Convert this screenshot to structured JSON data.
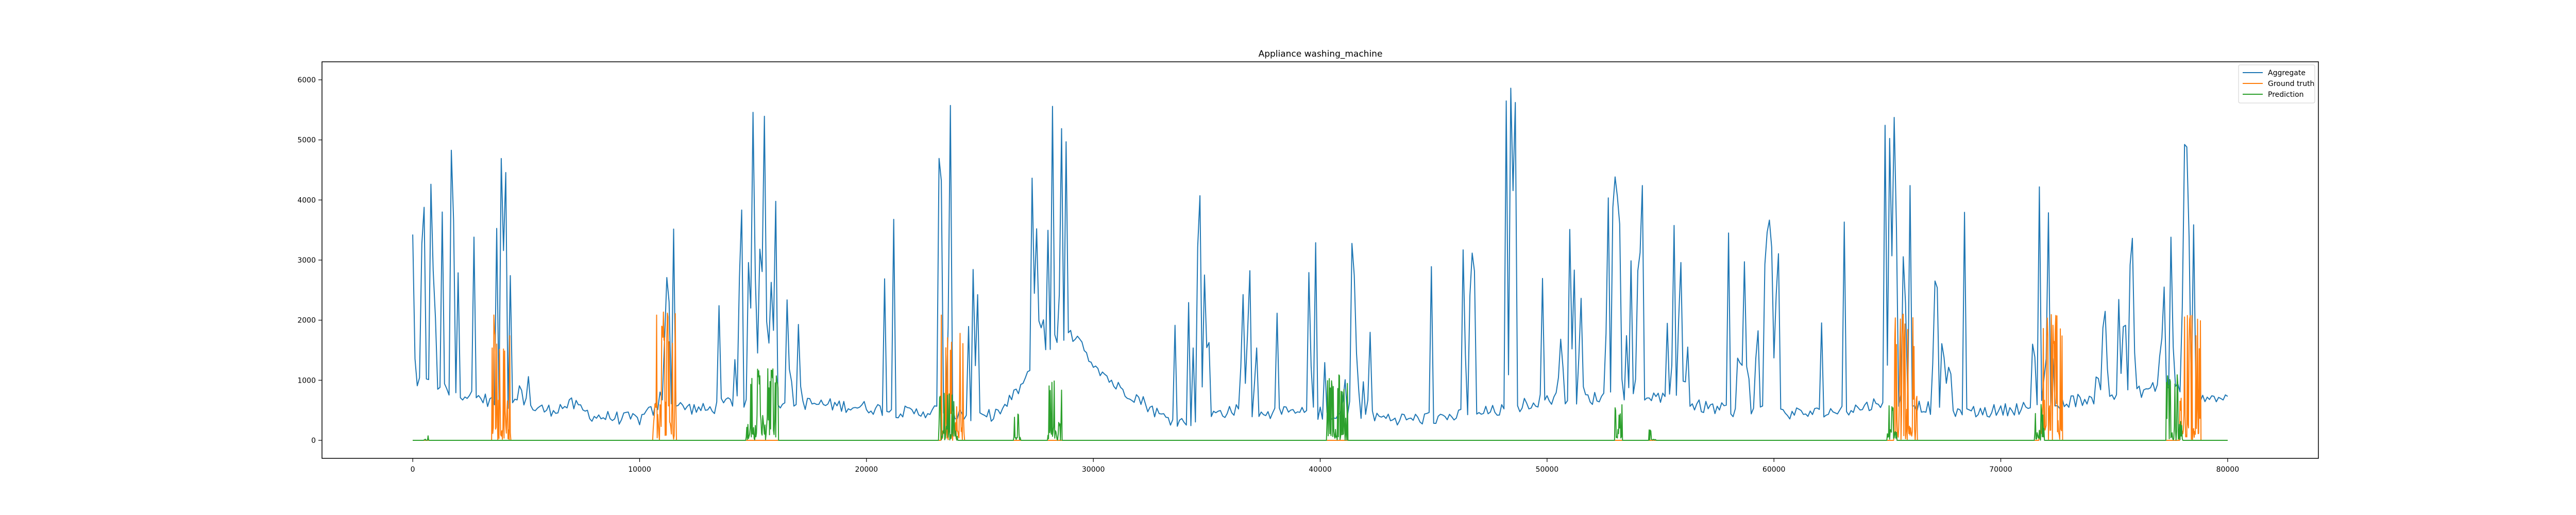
{
  "chart_data": {
    "type": "line",
    "title": "Appliance washing_machine",
    "xlabel": "",
    "ylabel": "",
    "xlim": [
      -4000,
      84000
    ],
    "ylim": [
      -300,
      6300
    ],
    "xticks": [
      0,
      10000,
      20000,
      30000,
      40000,
      50000,
      60000,
      70000,
      80000
    ],
    "yticks": [
      0,
      1000,
      2000,
      3000,
      4000,
      5000,
      6000
    ],
    "grid": false,
    "legend_position": "upper right",
    "series": [
      {
        "name": "Aggregate",
        "color": "#1f77b4",
        "sample_step": 100,
        "baseline": [
          [
            0,
            1000
          ],
          [
            2000,
            800
          ],
          [
            3000,
            700
          ],
          [
            4000,
            600
          ],
          [
            6000,
            500
          ],
          [
            7000,
            600
          ],
          [
            8000,
            400
          ],
          [
            10000,
            350
          ],
          [
            11000,
            600
          ],
          [
            13000,
            500
          ],
          [
            14000,
            650
          ],
          [
            16000,
            650
          ],
          [
            18000,
            600
          ],
          [
            20000,
            550
          ],
          [
            22000,
            450
          ],
          [
            23000,
            500
          ],
          [
            25000,
            350
          ],
          [
            26000,
            500
          ],
          [
            27000,
            1000
          ],
          [
            28000,
            1500
          ],
          [
            29000,
            1800
          ],
          [
            30000,
            1300
          ],
          [
            31000,
            900
          ],
          [
            32000,
            700
          ],
          [
            33000,
            400
          ],
          [
            34000,
            300
          ],
          [
            35000,
            400
          ],
          [
            36000,
            500
          ],
          [
            38000,
            450
          ],
          [
            40000,
            450
          ],
          [
            42000,
            400
          ],
          [
            44000,
            350
          ],
          [
            46000,
            400
          ],
          [
            48000,
            500
          ],
          [
            50000,
            700
          ],
          [
            52000,
            700
          ],
          [
            54000,
            800
          ],
          [
            56000,
            600
          ],
          [
            58000,
            500
          ],
          [
            60000,
            450
          ],
          [
            62000,
            450
          ],
          [
            64000,
            550
          ],
          [
            65000,
            700
          ],
          [
            66000,
            600
          ],
          [
            68000,
            450
          ],
          [
            70000,
            500
          ],
          [
            72000,
            600
          ],
          [
            74000,
            700
          ],
          [
            76000,
            800
          ],
          [
            77000,
            900
          ],
          [
            78000,
            800
          ],
          [
            80000,
            700
          ]
        ],
        "bursts": [
          [
            0,
            1000,
            4500
          ],
          [
            1200,
            600,
            6000
          ],
          [
            3600,
            800,
            4900
          ],
          [
            4600,
            500,
            1900
          ],
          [
            10700,
            800,
            4100
          ],
          [
            14200,
            1800,
            6000
          ],
          [
            16500,
            600,
            2500
          ],
          [
            23200,
            600,
            6000
          ],
          [
            24500,
            400,
            3600
          ],
          [
            27300,
            1800,
            6000
          ],
          [
            29100,
            500,
            4300
          ],
          [
            34200,
            900,
            4200
          ],
          [
            36500,
            700,
            3300
          ],
          [
            39500,
            700,
            4300
          ],
          [
            41000,
            1200,
            3700
          ],
          [
            46200,
            700,
            3800
          ],
          [
            48200,
            500,
            6000
          ],
          [
            50500,
            1100,
            3800
          ],
          [
            52500,
            1800,
            4700
          ],
          [
            55300,
            900,
            3700
          ],
          [
            58300,
            1000,
            3700
          ],
          [
            59600,
            600,
            3800
          ],
          [
            64900,
            1100,
            6000
          ],
          [
            67000,
            800,
            3000
          ],
          [
            71400,
            1100,
            4300
          ],
          [
            74000,
            700,
            2800
          ],
          [
            75200,
            800,
            3500
          ],
          [
            77000,
            800,
            6000
          ],
          [
            78000,
            800,
            5300
          ]
        ]
      },
      {
        "name": "Ground truth",
        "color": "#ff7f0e",
        "events": [
          [
            3500,
            800,
            2100
          ],
          [
            10600,
            1000,
            2200
          ],
          [
            23300,
            1000,
            2100
          ],
          [
            65300,
            1000,
            2200
          ],
          [
            71700,
            1000,
            2100
          ],
          [
            77900,
            900,
            2100
          ]
        ]
      },
      {
        "name": "Prediction",
        "color": "#2ca02c",
        "events": [
          [
            14700,
            1400,
            1200
          ],
          [
            23200,
            800,
            800
          ],
          [
            26500,
            300,
            500
          ],
          [
            28000,
            600,
            1000
          ],
          [
            40300,
            900,
            1100
          ],
          [
            53000,
            300,
            600
          ],
          [
            54500,
            300,
            200
          ],
          [
            65000,
            400,
            600
          ],
          [
            71500,
            400,
            600
          ],
          [
            77300,
            700,
            1100
          ],
          [
            500,
            200,
            100
          ]
        ]
      }
    ],
    "x_range": [
      0,
      80000
    ]
  }
}
